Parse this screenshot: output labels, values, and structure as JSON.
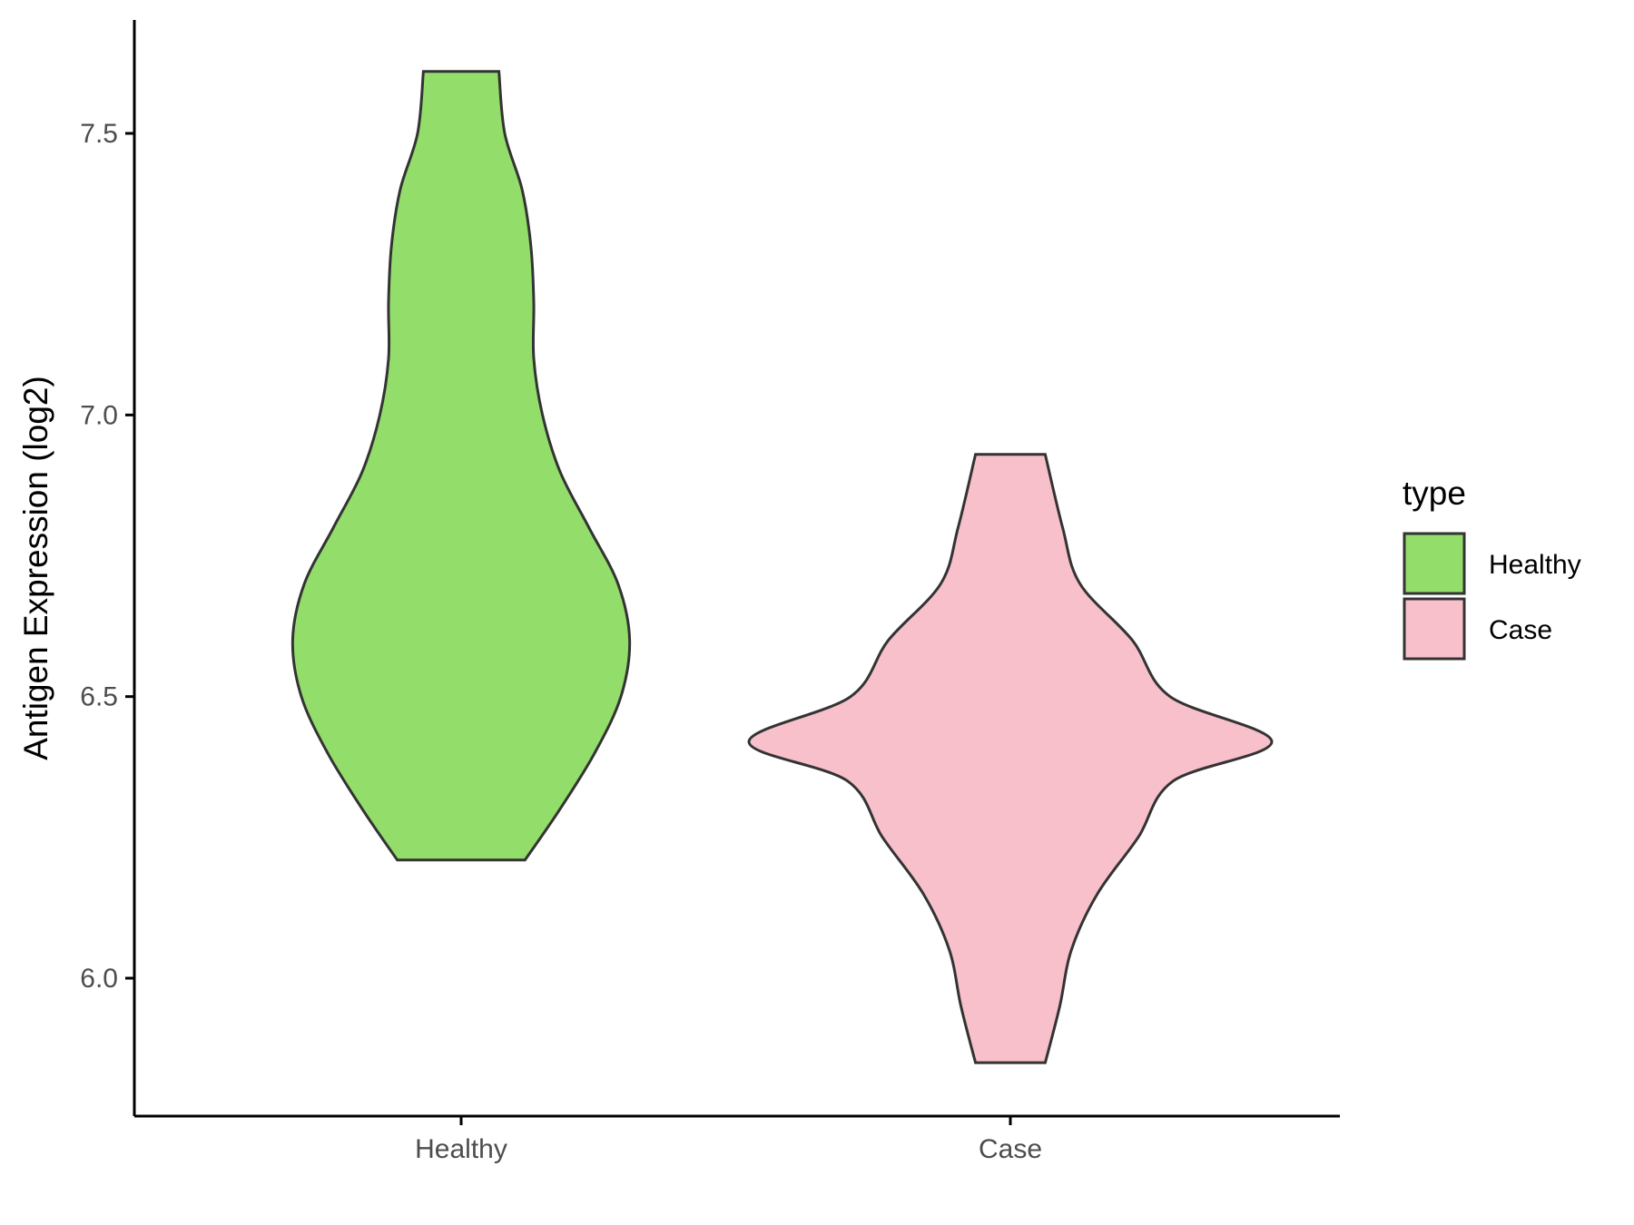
{
  "chart_data": {
    "type": "violin",
    "title": "",
    "xlabel": "",
    "ylabel": "Antigen Expression (log2)",
    "categories": [
      "Healthy",
      "Case"
    ],
    "ylim": [
      5.8,
      7.75
    ],
    "yticks": [
      "6.0",
      "6.5",
      "7.0",
      "7.5"
    ],
    "ytick_values": [
      6.0,
      6.5,
      7.0,
      7.5
    ],
    "grid": false,
    "legend": {
      "title": "type",
      "position": "right",
      "items": [
        {
          "label": "Healthy",
          "color": "#93dd6a"
        },
        {
          "label": "Case",
          "color": "#f8c0cb"
        }
      ]
    },
    "series": [
      {
        "name": "Healthy",
        "color": "#93dd6a",
        "min": 6.21,
        "max": 7.61,
        "density_profile": [
          [
            6.21,
            0.22
          ],
          [
            6.3,
            0.34
          ],
          [
            6.4,
            0.46
          ],
          [
            6.5,
            0.55
          ],
          [
            6.6,
            0.58
          ],
          [
            6.7,
            0.54
          ],
          [
            6.8,
            0.44
          ],
          [
            6.9,
            0.34
          ],
          [
            7.0,
            0.28
          ],
          [
            7.1,
            0.25
          ],
          [
            7.2,
            0.25
          ],
          [
            7.3,
            0.24
          ],
          [
            7.4,
            0.21
          ],
          [
            7.5,
            0.15
          ],
          [
            7.61,
            0.13
          ]
        ]
      },
      {
        "name": "Case",
        "color": "#f8c0cb",
        "min": 5.85,
        "max": 6.93,
        "density_profile": [
          [
            5.85,
            0.12
          ],
          [
            5.95,
            0.17
          ],
          [
            6.05,
            0.21
          ],
          [
            6.15,
            0.3
          ],
          [
            6.25,
            0.44
          ],
          [
            6.35,
            0.56
          ],
          [
            6.42,
            0.9
          ],
          [
            6.5,
            0.55
          ],
          [
            6.6,
            0.42
          ],
          [
            6.7,
            0.24
          ],
          [
            6.8,
            0.18
          ],
          [
            6.93,
            0.12
          ]
        ]
      }
    ]
  }
}
